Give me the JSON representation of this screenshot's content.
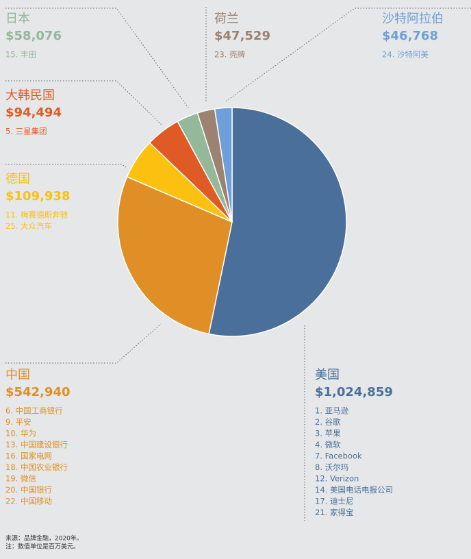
{
  "chart_data": {
    "type": "pie",
    "categories": [
      "美国",
      "中国",
      "德国",
      "大韩民国",
      "日本",
      "荷兰",
      "沙特阿拉伯"
    ],
    "values": [
      1024859,
      542940,
      109938,
      94494,
      58076,
      47529,
      46768
    ],
    "value_labels": [
      "$1,024,859",
      "$542,940",
      "$109,938",
      "$94,494",
      "$58,076",
      "$47,529",
      "$46,768"
    ],
    "colors": [
      "#4a6f9a",
      "#e08f26",
      "#fbc010",
      "#e05a26",
      "#93b89a",
      "#9c8270",
      "#6f9fd8"
    ],
    "brands": [
      [
        "1. 亚马逊",
        "2. 谷歌",
        "3. 苹果",
        "4. 微软",
        "7. Facebook",
        "8. 沃尔玛",
        "12. Verizon",
        "14. 美国电话电报公司",
        "17. 迪士尼",
        "21. 家得宝"
      ],
      [
        "6. 中国工商银行",
        "9. 平安",
        "10. 华为",
        "13. 中国建设银行",
        "16. 国家电网",
        "18. 中国农业银行",
        "19. 微信",
        "20. 中国银行",
        "22. 中国移动"
      ],
      [
        "11. 梅赛德斯奔驰",
        "25. 大众汽车"
      ],
      [
        "5. 三星集团"
      ],
      [
        "15. 丰田"
      ],
      [
        "23. 壳牌"
      ],
      [
        "24. 沙特阿美"
      ]
    ],
    "source": "来源：品牌金融，2020年。",
    "note": "注：数值单位是百万美元。"
  }
}
